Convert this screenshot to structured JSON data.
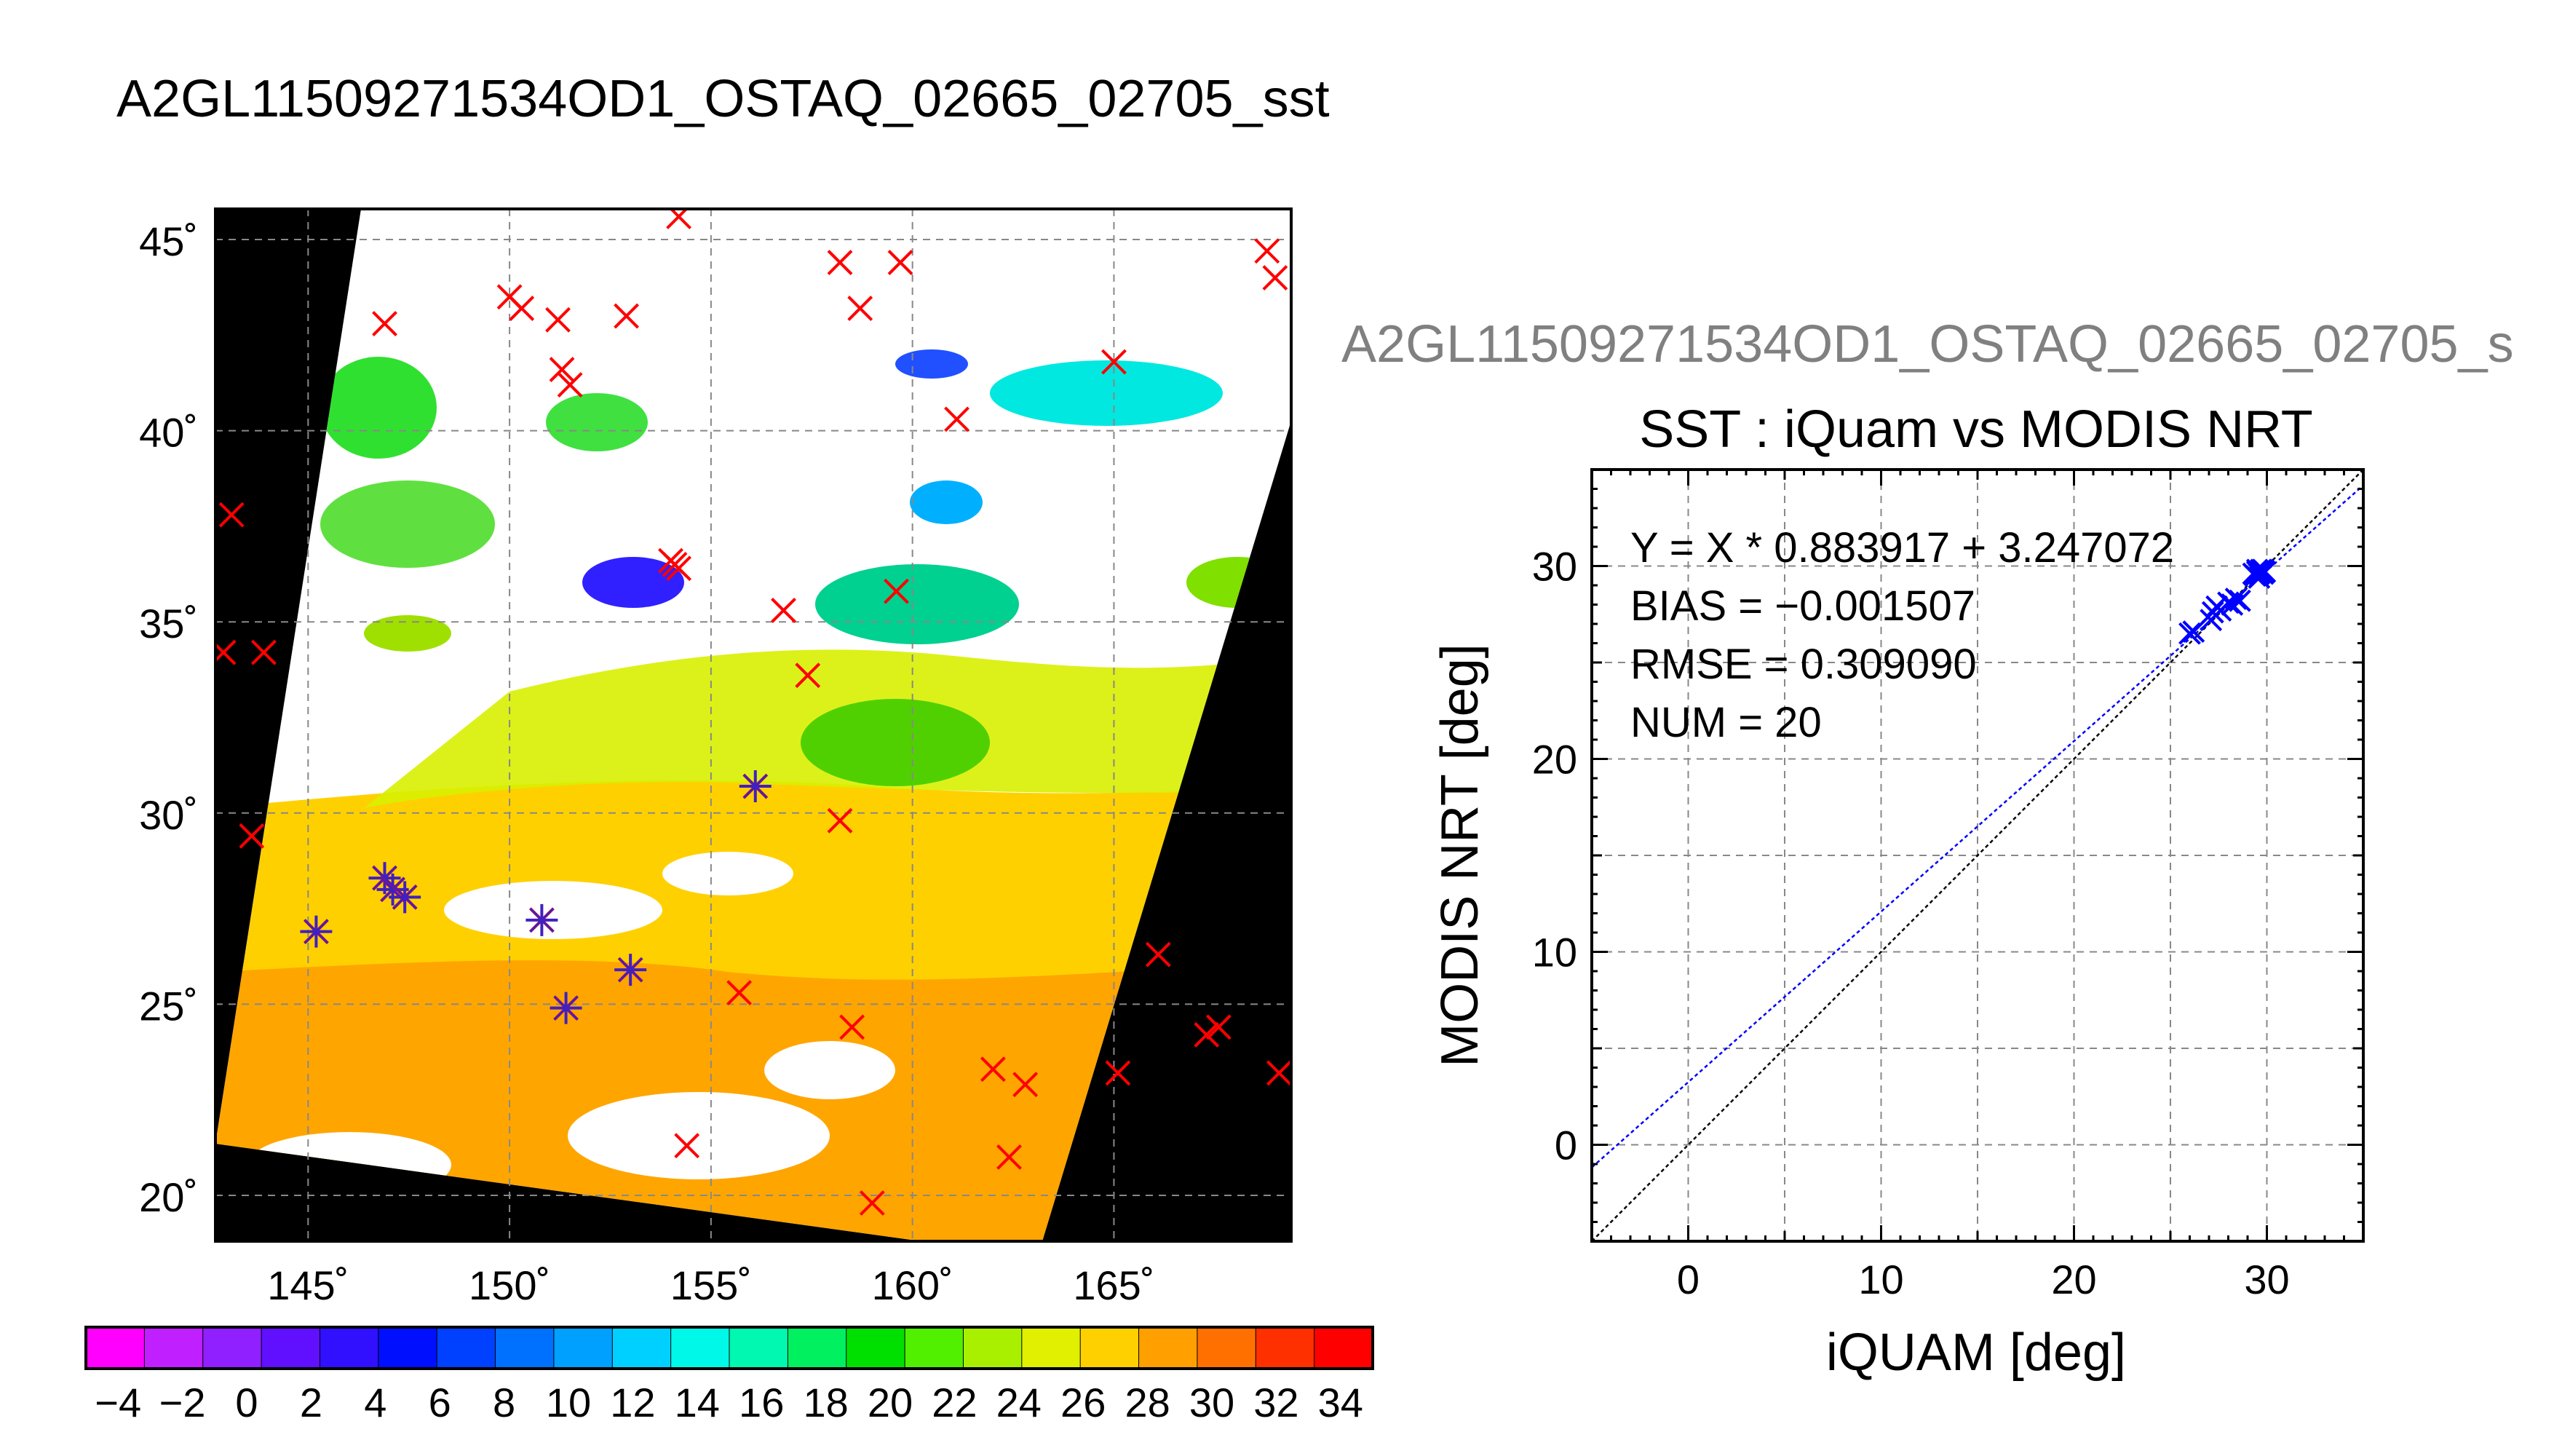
{
  "page": {
    "main_title": "A2GL11509271534OD1_OSTAQ_02665_02705_sst",
    "scatter_header": "A2GL11509271534OD1_OSTAQ_02665_02705_s"
  },
  "map": {
    "lat_ticks": [
      "20˚",
      "25˚",
      "30˚",
      "35˚",
      "40˚",
      "45˚"
    ],
    "lon_ticks": [
      "145˚",
      "150˚",
      "155˚",
      "160˚",
      "165˚"
    ],
    "lon_range": [
      142.7,
      169.4
    ],
    "lat_range": [
      18.8,
      45.8
    ],
    "colors": {
      "background": "#000000",
      "cloud": "#ffffff",
      "unmatched_marker": "#ff0000",
      "matched_marker": "#4020c0"
    },
    "unmatched_points": [
      [
        146.9,
        42.8
      ],
      [
        150.0,
        43.5
      ],
      [
        150.3,
        43.2
      ],
      [
        151.2,
        42.9
      ],
      [
        152.9,
        43.0
      ],
      [
        158.2,
        44.4
      ],
      [
        158.7,
        43.2
      ],
      [
        159.7,
        44.4
      ],
      [
        165.0,
        41.8
      ],
      [
        161.1,
        40.3
      ],
      [
        151.3,
        41.6
      ],
      [
        151.5,
        41.2
      ],
      [
        143.1,
        37.8
      ],
      [
        142.9,
        34.2
      ],
      [
        143.9,
        34.2
      ],
      [
        154.0,
        36.6
      ],
      [
        154.2,
        36.4
      ],
      [
        154.1,
        36.5
      ],
      [
        156.8,
        35.3
      ],
      [
        159.6,
        35.8
      ],
      [
        157.4,
        33.6
      ],
      [
        158.2,
        29.8
      ],
      [
        143.6,
        29.4
      ],
      [
        155.7,
        25.3
      ],
      [
        158.5,
        24.4
      ],
      [
        154.4,
        21.3
      ],
      [
        159.0,
        19.8
      ],
      [
        162.0,
        23.3
      ],
      [
        162.8,
        22.9
      ],
      [
        162.4,
        21.0
      ],
      [
        165.1,
        23.2
      ],
      [
        166.1,
        26.3
      ],
      [
        167.6,
        24.4
      ],
      [
        167.3,
        24.2
      ],
      [
        169.1,
        23.2
      ],
      [
        168.8,
        44.7
      ],
      [
        169.0,
        44.0
      ],
      [
        154.2,
        45.6
      ]
    ],
    "matched_points": [
      [
        145.2,
        26.9
      ],
      [
        146.9,
        28.3
      ],
      [
        147.1,
        28.0
      ],
      [
        147.4,
        27.8
      ],
      [
        150.8,
        27.2
      ],
      [
        151.4,
        24.9
      ],
      [
        153.0,
        25.9
      ],
      [
        156.1,
        30.7
      ]
    ]
  },
  "colorbar": {
    "min": -5,
    "max": 35,
    "tick_labels": [
      "−4",
      "−2",
      "0",
      "2",
      "4",
      "6",
      "8",
      "10",
      "12",
      "14",
      "16",
      "18",
      "20",
      "22",
      "24",
      "26",
      "28",
      "30",
      "32",
      "34"
    ],
    "colors": [
      "#ff00ff",
      "#c020ff",
      "#9020ff",
      "#6010ff",
      "#3010ff",
      "#0010ff",
      "#0040ff",
      "#0070ff",
      "#00a0ff",
      "#00d0ff",
      "#00f8e8",
      "#00f8b0",
      "#00f060",
      "#00e000",
      "#50f000",
      "#a8f000",
      "#e0f000",
      "#ffd000",
      "#ffa000",
      "#ff7000",
      "#ff3000",
      "#ff0000"
    ]
  },
  "chart_data": {
    "type": "scatter",
    "title": "SST : iQuam vs MODIS NRT",
    "xlabel": "iQUAM [deg]",
    "ylabel": "MODIS NRT [deg]",
    "xlim": [
      -5,
      35
    ],
    "ylim": [
      -5,
      35
    ],
    "x_ticks": [
      "0",
      "10",
      "20",
      "30"
    ],
    "y_ticks": [
      "0",
      "10",
      "20",
      "30"
    ],
    "grid": true,
    "stats": [
      "Y = X * 0.883917 + 3.247072",
      "BIAS = −0.001507",
      "RMSE = 0.309090",
      "NUM = 20"
    ],
    "fit": {
      "slope": 0.883917,
      "intercept": 3.247072,
      "color": "#0000ff"
    },
    "identity_line_color": "#000000",
    "marker_color": "#0000ff",
    "points": [
      [
        26.0,
        26.5
      ],
      [
        26.2,
        26.6
      ],
      [
        27.1,
        27.2
      ],
      [
        27.2,
        27.6
      ],
      [
        27.4,
        27.9
      ],
      [
        27.6,
        27.7
      ],
      [
        28.0,
        28.1
      ],
      [
        28.2,
        28.0
      ],
      [
        28.4,
        28.3
      ],
      [
        28.6,
        28.2
      ],
      [
        29.3,
        29.6
      ],
      [
        29.4,
        29.5
      ],
      [
        29.5,
        29.7
      ],
      [
        29.6,
        29.6
      ],
      [
        29.7,
        29.8
      ],
      [
        29.8,
        29.6
      ],
      [
        29.9,
        29.7
      ],
      [
        29.6,
        29.4
      ],
      [
        29.5,
        29.8
      ],
      [
        29.8,
        29.8
      ]
    ]
  }
}
